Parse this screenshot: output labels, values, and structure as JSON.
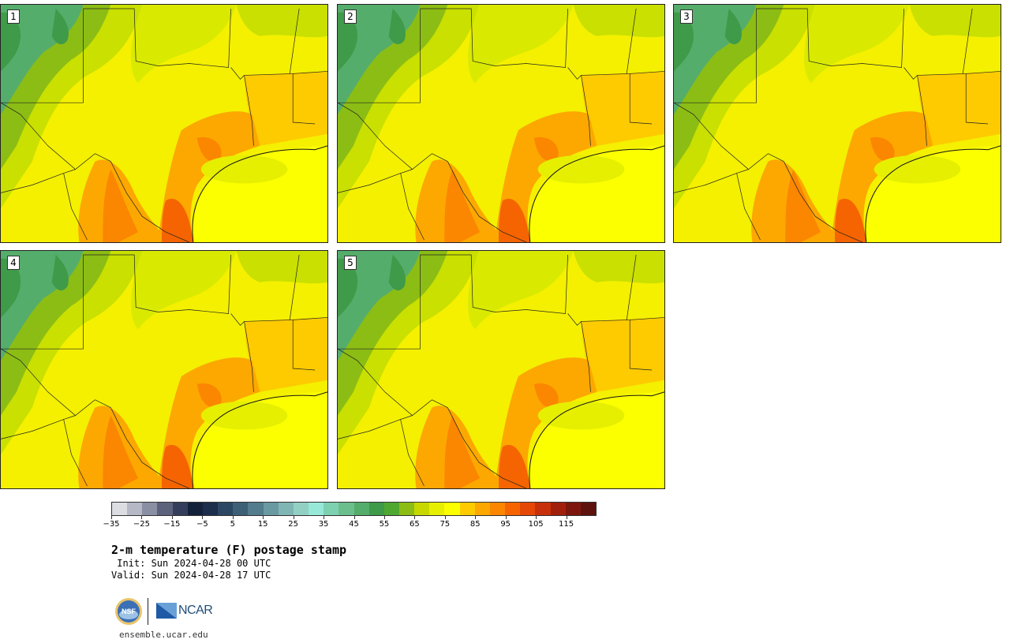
{
  "panels": [
    {
      "number": "1"
    },
    {
      "number": "2"
    },
    {
      "number": "3"
    },
    {
      "number": "4"
    },
    {
      "number": "5"
    }
  ],
  "colorbar": {
    "colors": [
      "#dcdde2",
      "#b6b8c6",
      "#8b8fa4",
      "#5c627c",
      "#343e5c",
      "#14213a",
      "#1c2e4c",
      "#2b4763",
      "#3d6077",
      "#537c8d",
      "#6a99a2",
      "#7fb6b4",
      "#92d0c4",
      "#98e8d8",
      "#7dd0b0",
      "#6cbe8d",
      "#55ad6b",
      "#3f9a49",
      "#4fa82f",
      "#8cbd14",
      "#c7d800",
      "#e6ef00",
      "#fbff00",
      "#fdcb00",
      "#fca800",
      "#fb8600",
      "#f56400",
      "#e54706",
      "#c6300a",
      "#a1200c",
      "#7d170e",
      "#5e120d"
    ],
    "tick_labels": [
      "−35",
      "−25",
      "−15",
      "−5",
      "5",
      "15",
      "25",
      "35",
      "45",
      "55",
      "65",
      "75",
      "85",
      "95",
      "105",
      "115"
    ]
  },
  "title": "2-m temperature (F) postage stamp",
  "init_line": " Init: Sun 2024-04-28 00 UTC",
  "valid_line": "Valid: Sun 2024-04-28 17 UTC",
  "logos": {
    "nsf_text": "NSF",
    "ncar_text": "NCAR"
  },
  "site": "ensemble.ucar.edu"
}
